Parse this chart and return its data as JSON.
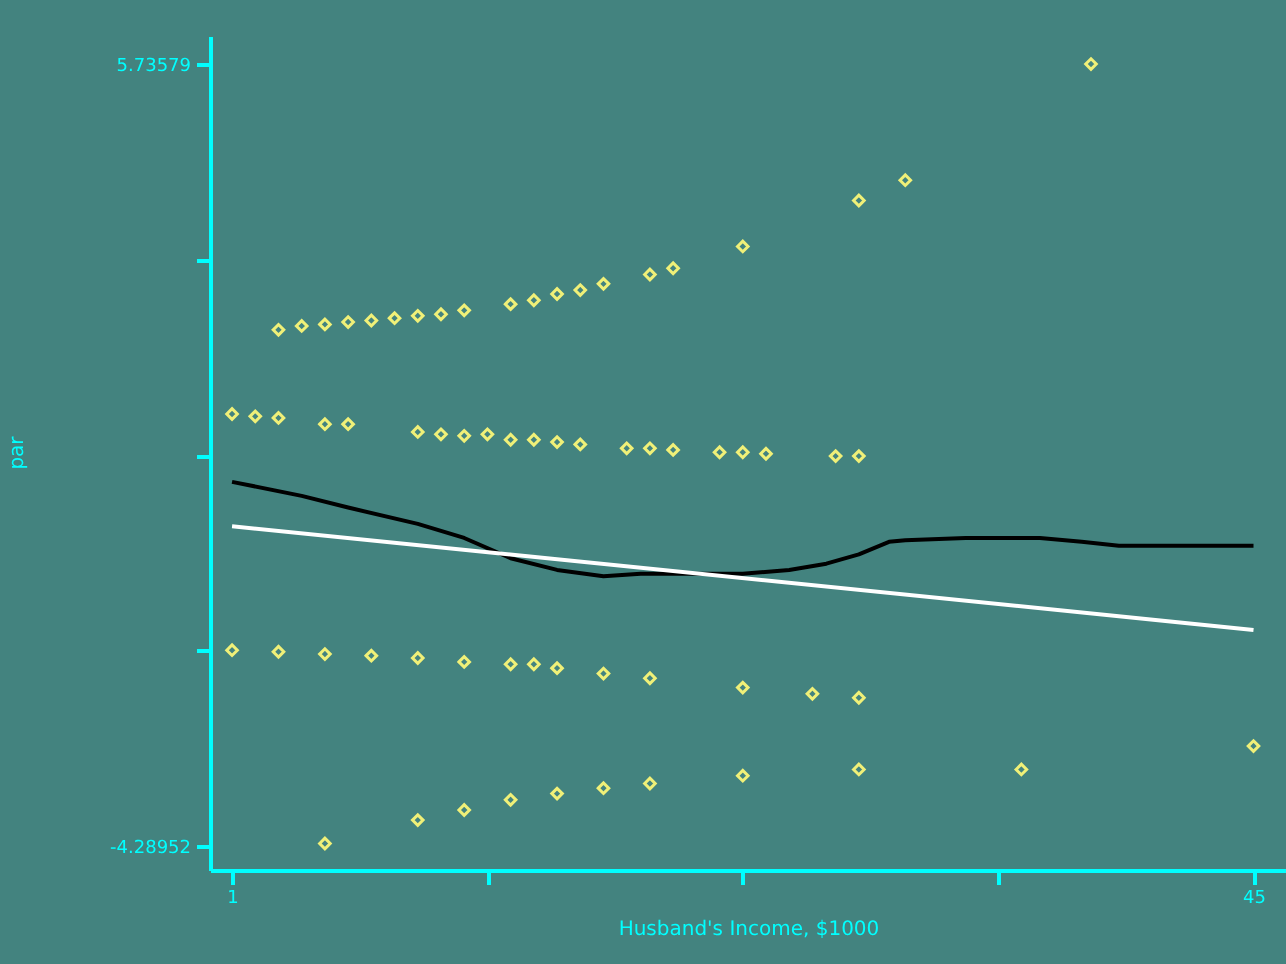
{
  "chart_data": {
    "type": "scatter",
    "xlabel": "Husband's Income, $1000",
    "ylabel": "par",
    "xlim": [
      0.05,
      46.4
    ],
    "ylim": [
      -4.6,
      6.1
    ],
    "xticks": [
      1,
      {
        "value": 12,
        "label": null
      },
      {
        "value": 23,
        "label": null
      },
      {
        "value": 34,
        "label": null
      },
      45
    ],
    "yticks": [
      5.73579,
      {
        "value": 3.22946,
        "label": null
      },
      {
        "value": 0.72313,
        "label": null
      },
      {
        "value": -1.7832,
        "label": null
      },
      -4.28952
    ],
    "grid": false,
    "series": [
      {
        "color": "#f0f078",
        "marker": "diamond",
        "x": [
          3,
          4,
          5,
          6,
          7,
          8,
          9,
          10,
          11,
          13,
          14,
          15,
          16,
          17,
          19,
          20,
          23,
          28,
          30,
          38,
          1,
          2,
          3,
          5,
          6,
          9,
          10,
          11,
          12,
          13,
          14,
          15,
          16,
          18,
          19,
          20,
          22,
          23,
          24,
          27,
          28,
          1,
          3,
          5,
          7,
          9,
          11,
          13,
          14,
          15,
          17,
          19,
          23,
          26,
          28,
          45,
          5,
          9,
          11,
          13,
          15,
          17,
          19,
          23,
          28,
          35
        ],
        "values": [
          2.33,
          2.38,
          2.4,
          2.43,
          2.45,
          2.48,
          2.51,
          2.53,
          2.58,
          2.66,
          2.71,
          2.79,
          2.84,
          2.92,
          3.04,
          3.12,
          3.4,
          3.99,
          4.25,
          5.74,
          1.25,
          1.22,
          1.2,
          1.12,
          1.12,
          1.02,
          0.99,
          0.97,
          0.99,
          0.92,
          0.92,
          0.89,
          0.86,
          0.81,
          0.81,
          0.79,
          0.76,
          0.76,
          0.74,
          0.71,
          0.71,
          -1.78,
          -1.8,
          -1.83,
          -1.85,
          -1.88,
          -1.93,
          -1.96,
          -1.96,
          -2.01,
          -2.08,
          -2.14,
          -2.26,
          -2.34,
          -2.39,
          -3.01,
          -4.26,
          -3.96,
          -3.83,
          -3.7,
          -3.62,
          -3.55,
          -3.49,
          -3.39,
          -3.31,
          -3.31
        ]
      },
      {
        "type": "line",
        "color": "#000000",
        "x": [
          1,
          4,
          6,
          9,
          11,
          13,
          15,
          17,
          18.6,
          21,
          23,
          25,
          26.6,
          28,
          29.3,
          30,
          32.6,
          35.8,
          37.6,
          39.2,
          45
        ],
        "values": [
          0.38,
          0.2,
          0.05,
          -0.16,
          -0.34,
          -0.6,
          -0.75,
          -0.83,
          -0.8,
          -0.8,
          -0.8,
          -0.75,
          -0.67,
          -0.55,
          -0.39,
          -0.37,
          -0.34,
          -0.34,
          -0.39,
          -0.44,
          -0.44
        ]
      },
      {
        "type": "line",
        "color": "#ffffff",
        "x": [
          1,
          45
        ],
        "values": [
          -0.19,
          -1.52
        ]
      }
    ]
  }
}
